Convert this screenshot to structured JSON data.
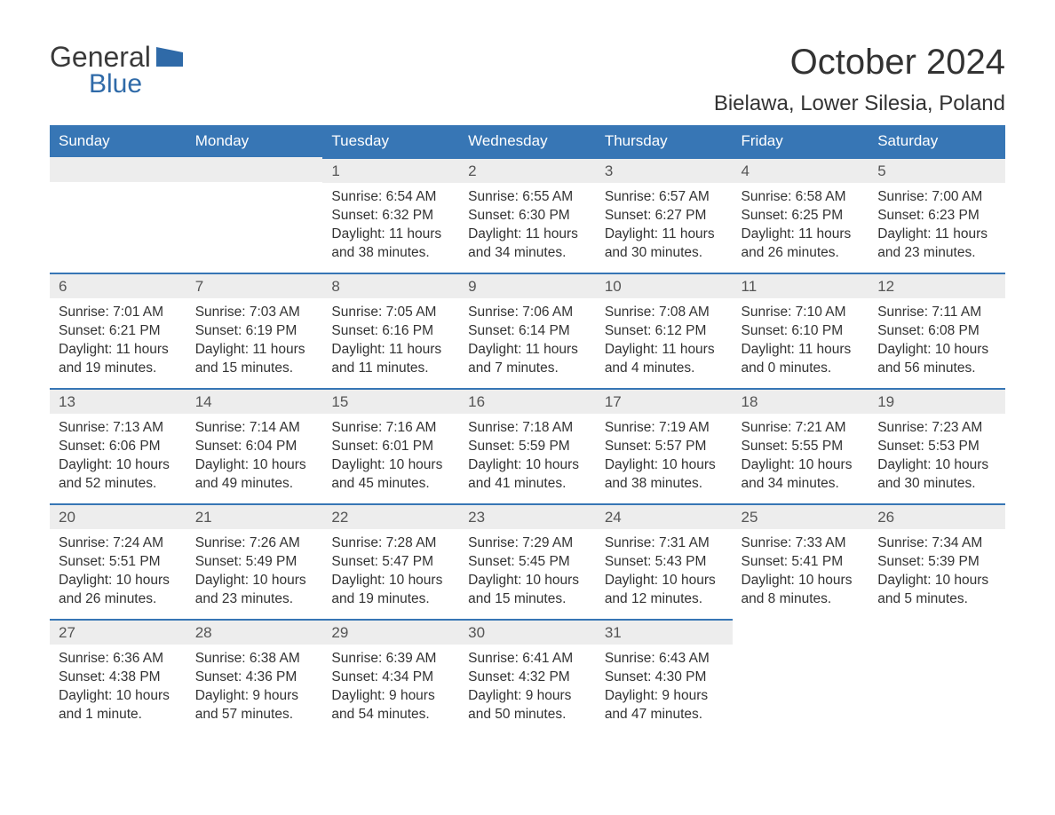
{
  "logo": {
    "general": "General",
    "blue": "Blue"
  },
  "title": "October 2024",
  "location": "Bielawa, Lower Silesia, Poland",
  "colors": {
    "header_bg": "#3776b5",
    "header_text": "#ffffff",
    "daynum_bg": "#ededed",
    "border": "#3776b5",
    "text": "#333333",
    "logo_blue": "#2f6aa8"
  },
  "daysOfWeek": [
    "Sunday",
    "Monday",
    "Tuesday",
    "Wednesday",
    "Thursday",
    "Friday",
    "Saturday"
  ],
  "weeks": [
    [
      null,
      null,
      {
        "num": "1",
        "sunrise": "Sunrise: 6:54 AM",
        "sunset": "Sunset: 6:32 PM",
        "daylight": "Daylight: 11 hours and 38 minutes."
      },
      {
        "num": "2",
        "sunrise": "Sunrise: 6:55 AM",
        "sunset": "Sunset: 6:30 PM",
        "daylight": "Daylight: 11 hours and 34 minutes."
      },
      {
        "num": "3",
        "sunrise": "Sunrise: 6:57 AM",
        "sunset": "Sunset: 6:27 PM",
        "daylight": "Daylight: 11 hours and 30 minutes."
      },
      {
        "num": "4",
        "sunrise": "Sunrise: 6:58 AM",
        "sunset": "Sunset: 6:25 PM",
        "daylight": "Daylight: 11 hours and 26 minutes."
      },
      {
        "num": "5",
        "sunrise": "Sunrise: 7:00 AM",
        "sunset": "Sunset: 6:23 PM",
        "daylight": "Daylight: 11 hours and 23 minutes."
      }
    ],
    [
      {
        "num": "6",
        "sunrise": "Sunrise: 7:01 AM",
        "sunset": "Sunset: 6:21 PM",
        "daylight": "Daylight: 11 hours and 19 minutes."
      },
      {
        "num": "7",
        "sunrise": "Sunrise: 7:03 AM",
        "sunset": "Sunset: 6:19 PM",
        "daylight": "Daylight: 11 hours and 15 minutes."
      },
      {
        "num": "8",
        "sunrise": "Sunrise: 7:05 AM",
        "sunset": "Sunset: 6:16 PM",
        "daylight": "Daylight: 11 hours and 11 minutes."
      },
      {
        "num": "9",
        "sunrise": "Sunrise: 7:06 AM",
        "sunset": "Sunset: 6:14 PM",
        "daylight": "Daylight: 11 hours and 7 minutes."
      },
      {
        "num": "10",
        "sunrise": "Sunrise: 7:08 AM",
        "sunset": "Sunset: 6:12 PM",
        "daylight": "Daylight: 11 hours and 4 minutes."
      },
      {
        "num": "11",
        "sunrise": "Sunrise: 7:10 AM",
        "sunset": "Sunset: 6:10 PM",
        "daylight": "Daylight: 11 hours and 0 minutes."
      },
      {
        "num": "12",
        "sunrise": "Sunrise: 7:11 AM",
        "sunset": "Sunset: 6:08 PM",
        "daylight": "Daylight: 10 hours and 56 minutes."
      }
    ],
    [
      {
        "num": "13",
        "sunrise": "Sunrise: 7:13 AM",
        "sunset": "Sunset: 6:06 PM",
        "daylight": "Daylight: 10 hours and 52 minutes."
      },
      {
        "num": "14",
        "sunrise": "Sunrise: 7:14 AM",
        "sunset": "Sunset: 6:04 PM",
        "daylight": "Daylight: 10 hours and 49 minutes."
      },
      {
        "num": "15",
        "sunrise": "Sunrise: 7:16 AM",
        "sunset": "Sunset: 6:01 PM",
        "daylight": "Daylight: 10 hours and 45 minutes."
      },
      {
        "num": "16",
        "sunrise": "Sunrise: 7:18 AM",
        "sunset": "Sunset: 5:59 PM",
        "daylight": "Daylight: 10 hours and 41 minutes."
      },
      {
        "num": "17",
        "sunrise": "Sunrise: 7:19 AM",
        "sunset": "Sunset: 5:57 PM",
        "daylight": "Daylight: 10 hours and 38 minutes."
      },
      {
        "num": "18",
        "sunrise": "Sunrise: 7:21 AM",
        "sunset": "Sunset: 5:55 PM",
        "daylight": "Daylight: 10 hours and 34 minutes."
      },
      {
        "num": "19",
        "sunrise": "Sunrise: 7:23 AM",
        "sunset": "Sunset: 5:53 PM",
        "daylight": "Daylight: 10 hours and 30 minutes."
      }
    ],
    [
      {
        "num": "20",
        "sunrise": "Sunrise: 7:24 AM",
        "sunset": "Sunset: 5:51 PM",
        "daylight": "Daylight: 10 hours and 26 minutes."
      },
      {
        "num": "21",
        "sunrise": "Sunrise: 7:26 AM",
        "sunset": "Sunset: 5:49 PM",
        "daylight": "Daylight: 10 hours and 23 minutes."
      },
      {
        "num": "22",
        "sunrise": "Sunrise: 7:28 AM",
        "sunset": "Sunset: 5:47 PM",
        "daylight": "Daylight: 10 hours and 19 minutes."
      },
      {
        "num": "23",
        "sunrise": "Sunrise: 7:29 AM",
        "sunset": "Sunset: 5:45 PM",
        "daylight": "Daylight: 10 hours and 15 minutes."
      },
      {
        "num": "24",
        "sunrise": "Sunrise: 7:31 AM",
        "sunset": "Sunset: 5:43 PM",
        "daylight": "Daylight: 10 hours and 12 minutes."
      },
      {
        "num": "25",
        "sunrise": "Sunrise: 7:33 AM",
        "sunset": "Sunset: 5:41 PM",
        "daylight": "Daylight: 10 hours and 8 minutes."
      },
      {
        "num": "26",
        "sunrise": "Sunrise: 7:34 AM",
        "sunset": "Sunset: 5:39 PM",
        "daylight": "Daylight: 10 hours and 5 minutes."
      }
    ],
    [
      {
        "num": "27",
        "sunrise": "Sunrise: 6:36 AM",
        "sunset": "Sunset: 4:38 PM",
        "daylight": "Daylight: 10 hours and 1 minute."
      },
      {
        "num": "28",
        "sunrise": "Sunrise: 6:38 AM",
        "sunset": "Sunset: 4:36 PM",
        "daylight": "Daylight: 9 hours and 57 minutes."
      },
      {
        "num": "29",
        "sunrise": "Sunrise: 6:39 AM",
        "sunset": "Sunset: 4:34 PM",
        "daylight": "Daylight: 9 hours and 54 minutes."
      },
      {
        "num": "30",
        "sunrise": "Sunrise: 6:41 AM",
        "sunset": "Sunset: 4:32 PM",
        "daylight": "Daylight: 9 hours and 50 minutes."
      },
      {
        "num": "31",
        "sunrise": "Sunrise: 6:43 AM",
        "sunset": "Sunset: 4:30 PM",
        "daylight": "Daylight: 9 hours and 47 minutes."
      },
      null,
      null
    ]
  ]
}
